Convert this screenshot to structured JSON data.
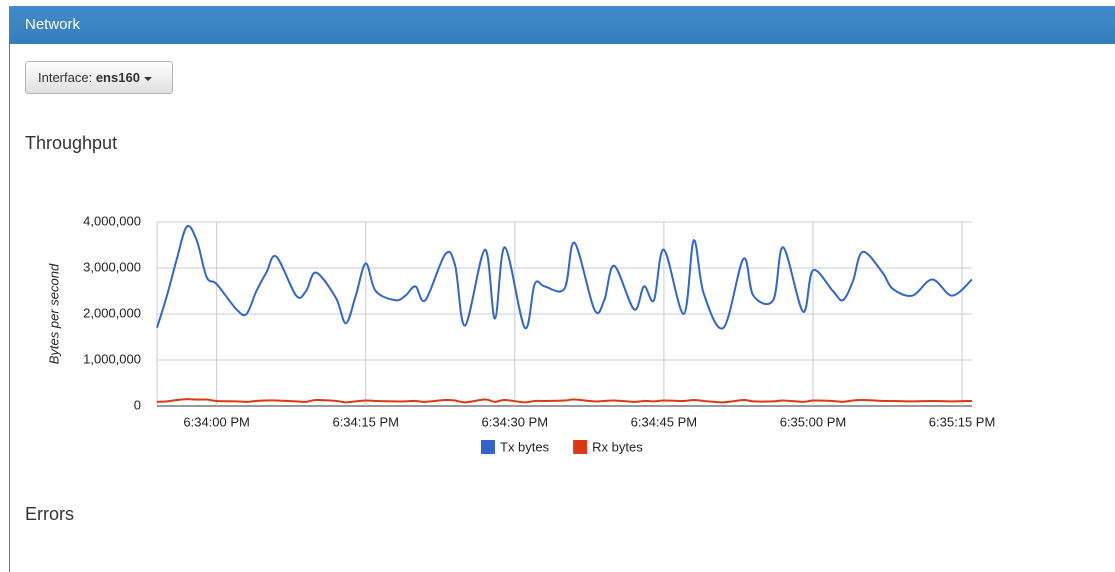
{
  "panel": {
    "title": "Network"
  },
  "interface_button": {
    "label": "Interface:",
    "value": "ens160"
  },
  "sections": [
    "Throughput",
    "Errors"
  ],
  "chart_data": {
    "type": "line",
    "y_label": "Bytes per second",
    "x": [
      "6:33:54 PM",
      "6:33:55 PM",
      "6:33:56 PM",
      "6:33:57 PM",
      "6:33:58 PM",
      "6:33:59 PM",
      "6:34:00 PM",
      "6:34:02 PM",
      "6:34:03 PM",
      "6:34:04 PM",
      "6:34:05 PM",
      "6:34:06 PM",
      "6:34:08 PM",
      "6:34:09 PM",
      "6:34:10 PM",
      "6:34:12 PM",
      "6:34:13 PM",
      "6:34:14 PM",
      "6:34:15 PM",
      "6:34:16 PM",
      "6:34:18 PM",
      "6:34:19 PM",
      "6:34:20 PM",
      "6:34:21 PM",
      "6:34:23 PM",
      "6:34:24 PM",
      "6:34:25 PM",
      "6:34:27 PM",
      "6:34:28 PM",
      "6:34:29 PM",
      "6:34:31 PM",
      "6:34:32 PM",
      "6:34:33 PM",
      "6:34:35 PM",
      "6:34:36 PM",
      "6:34:38 PM",
      "6:34:39 PM",
      "6:34:40 PM",
      "6:34:42 PM",
      "6:34:43 PM",
      "6:34:44 PM",
      "6:34:45 PM",
      "6:34:47 PM",
      "6:34:48 PM",
      "6:34:49 PM",
      "6:34:51 PM",
      "6:34:53 PM",
      "6:34:54 PM",
      "6:34:56 PM",
      "6:34:57 PM",
      "6:34:59 PM",
      "6:35:00 PM",
      "6:35:02 PM",
      "6:35:03 PM",
      "6:35:04 PM",
      "6:35:05 PM",
      "6:35:07 PM",
      "6:35:08 PM",
      "6:35:10 PM",
      "6:35:12 PM",
      "6:35:14 PM",
      "6:35:16 PM"
    ],
    "series": [
      {
        "name": "Tx bytes",
        "color": "#3366cc",
        "values": [
          1700000,
          2400000,
          3200000,
          3900000,
          3600000,
          2800000,
          2650000,
          2100000,
          2000000,
          2500000,
          2900000,
          3250000,
          2400000,
          2500000,
          2900000,
          2350000,
          1800000,
          2400000,
          3100000,
          2500000,
          2300000,
          2400000,
          2600000,
          2300000,
          3300000,
          3050000,
          1750000,
          3400000,
          1900000,
          3450000,
          1700000,
          2650000,
          2600000,
          2550000,
          3550000,
          2100000,
          2300000,
          3050000,
          2100000,
          2600000,
          2300000,
          3400000,
          2000000,
          3600000,
          2450000,
          1700000,
          3200000,
          2400000,
          2300000,
          3450000,
          2050000,
          2950000,
          2500000,
          2300000,
          2700000,
          3350000,
          2900000,
          2550000,
          2400000,
          2750000,
          2400000,
          2750000
        ]
      },
      {
        "name": "Rx bytes",
        "color": "#dc3912",
        "values": [
          90000,
          100000,
          130000,
          150000,
          140000,
          140000,
          110000,
          100000,
          90000,
          110000,
          120000,
          120000,
          100000,
          90000,
          130000,
          110000,
          80000,
          100000,
          120000,
          110000,
          100000,
          100000,
          110000,
          90000,
          130000,
          120000,
          80000,
          140000,
          90000,
          130000,
          80000,
          110000,
          110000,
          120000,
          140000,
          100000,
          110000,
          120000,
          90000,
          110000,
          100000,
          120000,
          110000,
          130000,
          110000,
          80000,
          130000,
          100000,
          100000,
          120000,
          90000,
          120000,
          110000,
          90000,
          120000,
          130000,
          110000,
          110000,
          100000,
          110000,
          100000,
          110000
        ]
      }
    ],
    "xlim": [
      "6:33:54 PM",
      "6:35:16 PM"
    ],
    "xticks": [
      "6:34:00 PM",
      "6:34:15 PM",
      "6:34:30 PM",
      "6:34:45 PM",
      "6:35:00 PM",
      "6:35:15 PM"
    ],
    "ylim": [
      0,
      4000000
    ],
    "yticks": [
      0,
      {
        "value": 1000000,
        "label": "1,000,000"
      },
      {
        "value": 2000000,
        "label": "2,000,000"
      },
      {
        "value": 3000000,
        "label": "3,000,000"
      },
      {
        "value": 4000000,
        "label": "4,000,000"
      }
    ],
    "grid": true,
    "legend": "bottom"
  }
}
